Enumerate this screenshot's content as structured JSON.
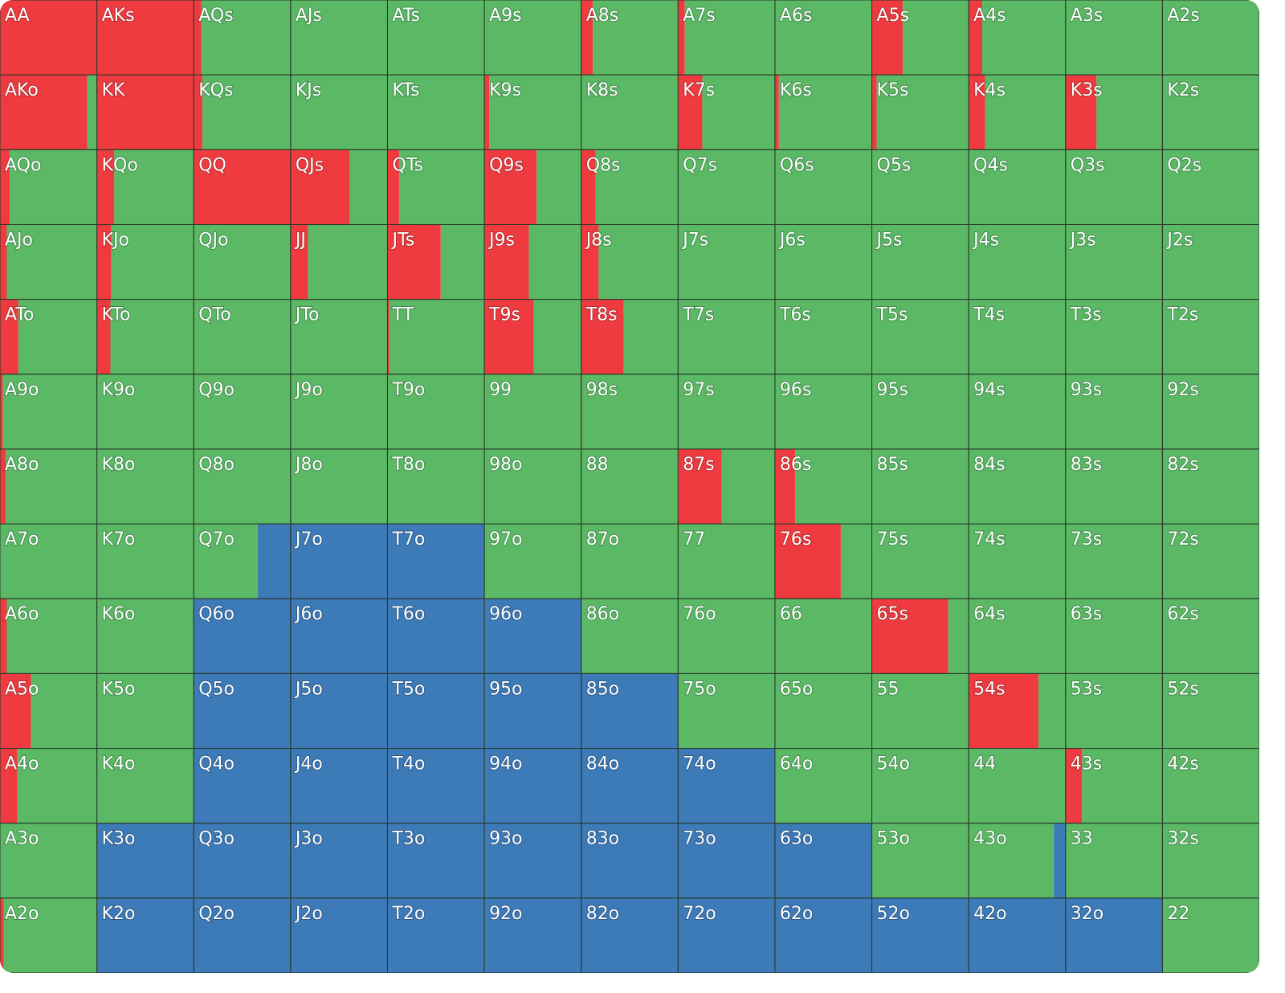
{
  "colors": {
    "raise": "#ef3b3f",
    "call": "#5bb966",
    "fold": "#3d7ab8"
  },
  "rows": [
    [
      {
        "label": "AA",
        "raise": 100,
        "call": 0,
        "fold": 0
      },
      {
        "label": "AKs",
        "raise": 100,
        "call": 0,
        "fold": 0
      },
      {
        "label": "AQs",
        "raise": 8,
        "call": 92,
        "fold": 0
      },
      {
        "label": "AJs",
        "raise": 0,
        "call": 100,
        "fold": 0
      },
      {
        "label": "ATs",
        "raise": 0,
        "call": 100,
        "fold": 0
      },
      {
        "label": "A9s",
        "raise": 0,
        "call": 100,
        "fold": 0
      },
      {
        "label": "A8s",
        "raise": 12,
        "call": 88,
        "fold": 0
      },
      {
        "label": "A7s",
        "raise": 7,
        "call": 93,
        "fold": 0
      },
      {
        "label": "A6s",
        "raise": 0,
        "call": 100,
        "fold": 0
      },
      {
        "label": "A5s",
        "raise": 32,
        "call": 68,
        "fold": 0
      },
      {
        "label": "A4s",
        "raise": 14,
        "call": 86,
        "fold": 0
      },
      {
        "label": "A3s",
        "raise": 0,
        "call": 100,
        "fold": 0
      },
      {
        "label": "A2s",
        "raise": 0,
        "call": 100,
        "fold": 0
      }
    ],
    [
      {
        "label": "AKo",
        "raise": 90,
        "call": 10,
        "fold": 0
      },
      {
        "label": "KK",
        "raise": 100,
        "call": 0,
        "fold": 0
      },
      {
        "label": "KQs",
        "raise": 9,
        "call": 91,
        "fold": 0
      },
      {
        "label": "KJs",
        "raise": 0,
        "call": 100,
        "fold": 0
      },
      {
        "label": "KTs",
        "raise": 0,
        "call": 100,
        "fold": 0
      },
      {
        "label": "K9s",
        "raise": 5,
        "call": 95,
        "fold": 0
      },
      {
        "label": "K8s",
        "raise": 0,
        "call": 100,
        "fold": 0
      },
      {
        "label": "K7s",
        "raise": 25,
        "call": 75,
        "fold": 0
      },
      {
        "label": "K6s",
        "raise": 4,
        "call": 96,
        "fold": 0
      },
      {
        "label": "K5s",
        "raise": 5,
        "call": 95,
        "fold": 0
      },
      {
        "label": "K4s",
        "raise": 17,
        "call": 83,
        "fold": 0
      },
      {
        "label": "K3s",
        "raise": 32,
        "call": 68,
        "fold": 0
      },
      {
        "label": "K2s",
        "raise": 0,
        "call": 100,
        "fold": 0
      }
    ],
    [
      {
        "label": "AQo",
        "raise": 10,
        "call": 90,
        "fold": 0
      },
      {
        "label": "KQo",
        "raise": 18,
        "call": 82,
        "fold": 0
      },
      {
        "label": "QQ",
        "raise": 100,
        "call": 0,
        "fold": 0
      },
      {
        "label": "QJs",
        "raise": 61,
        "call": 39,
        "fold": 0
      },
      {
        "label": "QTs",
        "raise": 12,
        "call": 88,
        "fold": 0
      },
      {
        "label": "Q9s",
        "raise": 54,
        "call": 46,
        "fold": 0
      },
      {
        "label": "Q8s",
        "raise": 15,
        "call": 85,
        "fold": 0
      },
      {
        "label": "Q7s",
        "raise": 0,
        "call": 100,
        "fold": 0
      },
      {
        "label": "Q6s",
        "raise": 0,
        "call": 100,
        "fold": 0
      },
      {
        "label": "Q5s",
        "raise": 0,
        "call": 100,
        "fold": 0
      },
      {
        "label": "Q4s",
        "raise": 0,
        "call": 100,
        "fold": 0
      },
      {
        "label": "Q3s",
        "raise": 0,
        "call": 100,
        "fold": 0
      },
      {
        "label": "Q2s",
        "raise": 0,
        "call": 100,
        "fold": 0
      }
    ],
    [
      {
        "label": "AJo",
        "raise": 7,
        "call": 93,
        "fold": 0
      },
      {
        "label": "KJo",
        "raise": 15,
        "call": 85,
        "fold": 0
      },
      {
        "label": "QJo",
        "raise": 0,
        "call": 100,
        "fold": 0
      },
      {
        "label": "JJ",
        "raise": 18,
        "call": 82,
        "fold": 0
      },
      {
        "label": "JTs",
        "raise": 55,
        "call": 45,
        "fold": 0
      },
      {
        "label": "J9s",
        "raise": 46,
        "call": 54,
        "fold": 0
      },
      {
        "label": "J8s",
        "raise": 18,
        "call": 82,
        "fold": 0
      },
      {
        "label": "J7s",
        "raise": 0,
        "call": 100,
        "fold": 0
      },
      {
        "label": "J6s",
        "raise": 0,
        "call": 100,
        "fold": 0
      },
      {
        "label": "J5s",
        "raise": 0,
        "call": 100,
        "fold": 0
      },
      {
        "label": "J4s",
        "raise": 0,
        "call": 100,
        "fold": 0
      },
      {
        "label": "J3s",
        "raise": 0,
        "call": 100,
        "fold": 0
      },
      {
        "label": "J2s",
        "raise": 0,
        "call": 100,
        "fold": 0
      }
    ],
    [
      {
        "label": "ATo",
        "raise": 19,
        "call": 81,
        "fold": 0
      },
      {
        "label": "KTo",
        "raise": 14,
        "call": 86,
        "fold": 0
      },
      {
        "label": "QTo",
        "raise": 0,
        "call": 100,
        "fold": 0
      },
      {
        "label": "JTo",
        "raise": 0,
        "call": 100,
        "fold": 0
      },
      {
        "label": "TT",
        "raise": 2,
        "call": 98,
        "fold": 0
      },
      {
        "label": "T9s",
        "raise": 51,
        "call": 49,
        "fold": 0
      },
      {
        "label": "T8s",
        "raise": 44,
        "call": 56,
        "fold": 0
      },
      {
        "label": "T7s",
        "raise": 0,
        "call": 100,
        "fold": 0
      },
      {
        "label": "T6s",
        "raise": 0,
        "call": 100,
        "fold": 0
      },
      {
        "label": "T5s",
        "raise": 0,
        "call": 100,
        "fold": 0
      },
      {
        "label": "T4s",
        "raise": 0,
        "call": 100,
        "fold": 0
      },
      {
        "label": "T3s",
        "raise": 0,
        "call": 100,
        "fold": 0
      },
      {
        "label": "T2s",
        "raise": 0,
        "call": 100,
        "fold": 0
      }
    ],
    [
      {
        "label": "A9o",
        "raise": 3,
        "call": 97,
        "fold": 0
      },
      {
        "label": "K9o",
        "raise": 0,
        "call": 100,
        "fold": 0
      },
      {
        "label": "Q9o",
        "raise": 0,
        "call": 100,
        "fold": 0
      },
      {
        "label": "J9o",
        "raise": 0,
        "call": 100,
        "fold": 0
      },
      {
        "label": "T9o",
        "raise": 0,
        "call": 100,
        "fold": 0
      },
      {
        "label": "99",
        "raise": 0,
        "call": 100,
        "fold": 0
      },
      {
        "label": "98s",
        "raise": 1,
        "call": 99,
        "fold": 0
      },
      {
        "label": "97s",
        "raise": 0,
        "call": 100,
        "fold": 0
      },
      {
        "label": "96s",
        "raise": 0,
        "call": 100,
        "fold": 0
      },
      {
        "label": "95s",
        "raise": 0,
        "call": 100,
        "fold": 0
      },
      {
        "label": "94s",
        "raise": 0,
        "call": 100,
        "fold": 0
      },
      {
        "label": "93s",
        "raise": 0,
        "call": 100,
        "fold": 0
      },
      {
        "label": "92s",
        "raise": 0,
        "call": 100,
        "fold": 0
      }
    ],
    [
      {
        "label": "A8o",
        "raise": 6,
        "call": 94,
        "fold": 0
      },
      {
        "label": "K8o",
        "raise": 0,
        "call": 100,
        "fold": 0
      },
      {
        "label": "Q8o",
        "raise": 0,
        "call": 100,
        "fold": 0
      },
      {
        "label": "J8o",
        "raise": 0,
        "call": 100,
        "fold": 0
      },
      {
        "label": "T8o",
        "raise": 0,
        "call": 100,
        "fold": 0
      },
      {
        "label": "98o",
        "raise": 0,
        "call": 100,
        "fold": 0
      },
      {
        "label": "88",
        "raise": 0,
        "call": 100,
        "fold": 0
      },
      {
        "label": "87s",
        "raise": 45,
        "call": 55,
        "fold": 0
      },
      {
        "label": "86s",
        "raise": 21,
        "call": 79,
        "fold": 0
      },
      {
        "label": "85s",
        "raise": 0,
        "call": 100,
        "fold": 0
      },
      {
        "label": "84s",
        "raise": 0,
        "call": 100,
        "fold": 0
      },
      {
        "label": "83s",
        "raise": 0,
        "call": 100,
        "fold": 0
      },
      {
        "label": "82s",
        "raise": 0,
        "call": 100,
        "fold": 0
      }
    ],
    [
      {
        "label": "A7o",
        "raise": 0,
        "call": 100,
        "fold": 0
      },
      {
        "label": "K7o",
        "raise": 0,
        "call": 100,
        "fold": 0
      },
      {
        "label": "Q7o",
        "raise": 0,
        "call": 66,
        "fold": 34
      },
      {
        "label": "J7o",
        "raise": 0,
        "call": 0,
        "fold": 100
      },
      {
        "label": "T7o",
        "raise": 0,
        "call": 0,
        "fold": 100
      },
      {
        "label": "97o",
        "raise": 0,
        "call": 100,
        "fold": 0
      },
      {
        "label": "87o",
        "raise": 0,
        "call": 100,
        "fold": 0
      },
      {
        "label": "77",
        "raise": 0,
        "call": 100,
        "fold": 0
      },
      {
        "label": "76s",
        "raise": 68,
        "call": 32,
        "fold": 0
      },
      {
        "label": "75s",
        "raise": 0,
        "call": 100,
        "fold": 0
      },
      {
        "label": "74s",
        "raise": 0,
        "call": 100,
        "fold": 0
      },
      {
        "label": "73s",
        "raise": 0,
        "call": 100,
        "fold": 0
      },
      {
        "label": "72s",
        "raise": 0,
        "call": 100,
        "fold": 0
      }
    ],
    [
      {
        "label": "A6o",
        "raise": 7,
        "call": 93,
        "fold": 0
      },
      {
        "label": "K6o",
        "raise": 0,
        "call": 100,
        "fold": 0
      },
      {
        "label": "Q6o",
        "raise": 0,
        "call": 0,
        "fold": 100
      },
      {
        "label": "J6o",
        "raise": 0,
        "call": 0,
        "fold": 100
      },
      {
        "label": "T6o",
        "raise": 0,
        "call": 0,
        "fold": 100
      },
      {
        "label": "96o",
        "raise": 0,
        "call": 0,
        "fold": 100
      },
      {
        "label": "86o",
        "raise": 0,
        "call": 100,
        "fold": 0
      },
      {
        "label": "76o",
        "raise": 0,
        "call": 100,
        "fold": 0
      },
      {
        "label": "66",
        "raise": 0,
        "call": 100,
        "fold": 0
      },
      {
        "label": "65s",
        "raise": 79,
        "call": 21,
        "fold": 0
      },
      {
        "label": "64s",
        "raise": 0,
        "call": 100,
        "fold": 0
      },
      {
        "label": "63s",
        "raise": 0,
        "call": 100,
        "fold": 0
      },
      {
        "label": "62s",
        "raise": 0,
        "call": 100,
        "fold": 0
      }
    ],
    [
      {
        "label": "A5o",
        "raise": 32,
        "call": 68,
        "fold": 0
      },
      {
        "label": "K5o",
        "raise": 0,
        "call": 100,
        "fold": 0
      },
      {
        "label": "Q5o",
        "raise": 0,
        "call": 0,
        "fold": 100
      },
      {
        "label": "J5o",
        "raise": 0,
        "call": 0,
        "fold": 100
      },
      {
        "label": "T5o",
        "raise": 0,
        "call": 0,
        "fold": 100
      },
      {
        "label": "95o",
        "raise": 0,
        "call": 0,
        "fold": 100
      },
      {
        "label": "85o",
        "raise": 0,
        "call": 0,
        "fold": 100
      },
      {
        "label": "75o",
        "raise": 0,
        "call": 100,
        "fold": 0
      },
      {
        "label": "65o",
        "raise": 0,
        "call": 100,
        "fold": 0
      },
      {
        "label": "55",
        "raise": 0,
        "call": 100,
        "fold": 0
      },
      {
        "label": "54s",
        "raise": 72,
        "call": 28,
        "fold": 0
      },
      {
        "label": "53s",
        "raise": 0,
        "call": 100,
        "fold": 0
      },
      {
        "label": "52s",
        "raise": 0,
        "call": 100,
        "fold": 0
      }
    ],
    [
      {
        "label": "A4o",
        "raise": 18,
        "call": 82,
        "fold": 0
      },
      {
        "label": "K4o",
        "raise": 0,
        "call": 100,
        "fold": 0
      },
      {
        "label": "Q4o",
        "raise": 0,
        "call": 0,
        "fold": 100
      },
      {
        "label": "J4o",
        "raise": 0,
        "call": 0,
        "fold": 100
      },
      {
        "label": "T4o",
        "raise": 0,
        "call": 0,
        "fold": 100
      },
      {
        "label": "94o",
        "raise": 0,
        "call": 0,
        "fold": 100
      },
      {
        "label": "84o",
        "raise": 0,
        "call": 0,
        "fold": 100
      },
      {
        "label": "74o",
        "raise": 0,
        "call": 0,
        "fold": 100
      },
      {
        "label": "64o",
        "raise": 0,
        "call": 100,
        "fold": 0
      },
      {
        "label": "54o",
        "raise": 0,
        "call": 100,
        "fold": 0
      },
      {
        "label": "44",
        "raise": 0,
        "call": 100,
        "fold": 0
      },
      {
        "label": "43s",
        "raise": 17,
        "call": 83,
        "fold": 0
      },
      {
        "label": "42s",
        "raise": 0,
        "call": 100,
        "fold": 0
      }
    ],
    [
      {
        "label": "A3o",
        "raise": 0,
        "call": 100,
        "fold": 0
      },
      {
        "label": "K3o",
        "raise": 0,
        "call": 0,
        "fold": 100
      },
      {
        "label": "Q3o",
        "raise": 0,
        "call": 0,
        "fold": 100
      },
      {
        "label": "J3o",
        "raise": 0,
        "call": 0,
        "fold": 100
      },
      {
        "label": "T3o",
        "raise": 0,
        "call": 0,
        "fold": 100
      },
      {
        "label": "93o",
        "raise": 0,
        "call": 0,
        "fold": 100
      },
      {
        "label": "83o",
        "raise": 0,
        "call": 0,
        "fold": 100
      },
      {
        "label": "73o",
        "raise": 0,
        "call": 0,
        "fold": 100
      },
      {
        "label": "63o",
        "raise": 0,
        "call": 0,
        "fold": 100
      },
      {
        "label": "53o",
        "raise": 0,
        "call": 100,
        "fold": 0
      },
      {
        "label": "43o",
        "raise": 0,
        "call": 88,
        "fold": 12
      },
      {
        "label": "33",
        "raise": 0,
        "call": 100,
        "fold": 0
      },
      {
        "label": "32s",
        "raise": 0,
        "call": 100,
        "fold": 0
      }
    ],
    [
      {
        "label": "A2o",
        "raise": 4,
        "call": 96,
        "fold": 0
      },
      {
        "label": "K2o",
        "raise": 0,
        "call": 0,
        "fold": 100
      },
      {
        "label": "Q2o",
        "raise": 0,
        "call": 0,
        "fold": 100
      },
      {
        "label": "J2o",
        "raise": 0,
        "call": 0,
        "fold": 100
      },
      {
        "label": "T2o",
        "raise": 0,
        "call": 0,
        "fold": 100
      },
      {
        "label": "92o",
        "raise": 0,
        "call": 0,
        "fold": 100
      },
      {
        "label": "82o",
        "raise": 0,
        "call": 0,
        "fold": 100
      },
      {
        "label": "72o",
        "raise": 0,
        "call": 0,
        "fold": 100
      },
      {
        "label": "62o",
        "raise": 0,
        "call": 0,
        "fold": 100
      },
      {
        "label": "52o",
        "raise": 0,
        "call": 0,
        "fold": 100
      },
      {
        "label": "42o",
        "raise": 0,
        "call": 0,
        "fold": 100
      },
      {
        "label": "32o",
        "raise": 0,
        "call": 0,
        "fold": 100
      },
      {
        "label": "22",
        "raise": 0,
        "call": 100,
        "fold": 0
      }
    ]
  ]
}
